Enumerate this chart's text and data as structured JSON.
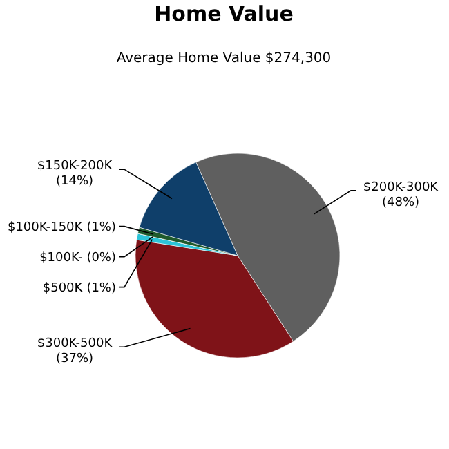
{
  "chart_data": {
    "type": "pie",
    "title": "Home Value",
    "subtitle": "Average Home Value  $274,300",
    "categories": [
      "$200K-300K",
      "$300K-500K",
      "$500K",
      "$100K-",
      "$100K-150K",
      "$150K-200K"
    ],
    "values": [
      48,
      37,
      1,
      0,
      1,
      14
    ],
    "colors": [
      "#5f5f5f",
      "#7f1318",
      "#2ec4d8",
      "#1b6f6a",
      "#1f5a2c",
      "#0f3f6a"
    ],
    "value_labels": [
      "(48%)",
      "(37%)",
      "(1%)",
      "(0%)",
      "(1%)",
      "(14%)"
    ]
  }
}
